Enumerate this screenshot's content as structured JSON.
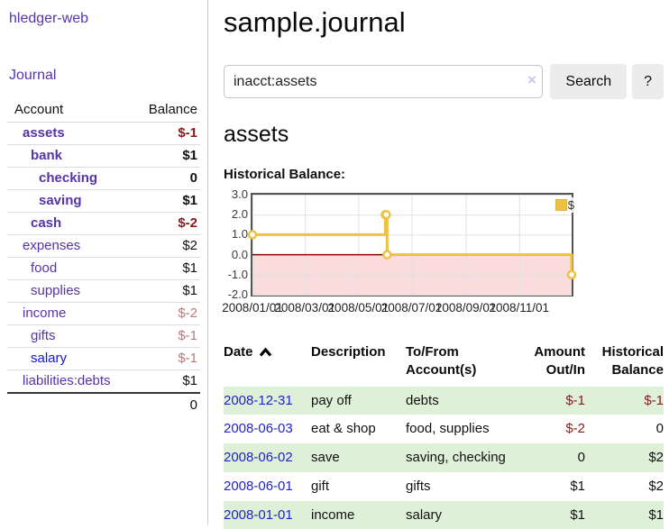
{
  "app": {
    "title": "hledger-web"
  },
  "sidebar": {
    "journal_label": "Journal",
    "accounts_table": {
      "headers": [
        "Account",
        "Balance"
      ],
      "rows": [
        {
          "name": "assets",
          "indent": 1,
          "bold": true,
          "balance": "$-1",
          "balance_style": "negative"
        },
        {
          "name": "bank",
          "indent": 2,
          "bold": true,
          "balance": "$1",
          "balance_style": "normal"
        },
        {
          "name": "checking",
          "indent": 3,
          "bold": true,
          "balance": "0",
          "balance_style": "normal"
        },
        {
          "name": "saving",
          "indent": 3,
          "bold": true,
          "balance": "$1",
          "balance_style": "normal"
        },
        {
          "name": "cash",
          "indent": 2,
          "bold": true,
          "balance": "$-2",
          "balance_style": "negative"
        },
        {
          "name": "expenses",
          "indent": 1,
          "bold": false,
          "balance": "$2",
          "balance_style": "normal"
        },
        {
          "name": "food",
          "indent": 2,
          "bold": false,
          "balance": "$1",
          "balance_style": "normal"
        },
        {
          "name": "supplies",
          "indent": 2,
          "bold": false,
          "balance": "$1",
          "balance_style": "normal"
        },
        {
          "name": "income",
          "indent": 1,
          "bold": false,
          "balance": "$-2",
          "balance_style": "negative-muted"
        },
        {
          "name": "gifts",
          "indent": 2,
          "bold": false,
          "balance": "$-1",
          "balance_style": "negative-muted"
        },
        {
          "name": "salary",
          "indent": 2,
          "bold": false,
          "link_style": "unvisited",
          "balance": "$-1",
          "balance_style": "negative-muted"
        },
        {
          "name": "liabilities:debts",
          "indent": 1,
          "bold": false,
          "balance": "$1",
          "balance_style": "normal"
        }
      ],
      "total": "0"
    }
  },
  "header": {
    "title": "sample.journal"
  },
  "search": {
    "value": "inacct:assets",
    "clear_icon": "×",
    "button_label": "Search",
    "help_label": "?"
  },
  "account_page": {
    "heading": "assets",
    "section_label": "Historical Balance:"
  },
  "chart_data": {
    "type": "line",
    "step": true,
    "title": "Historical Balance",
    "xlim": [
      0,
      365
    ],
    "ylim": [
      -2,
      3
    ],
    "grid": true,
    "legend_position": "top-right",
    "legend": {
      "label": "$"
    },
    "series": [
      {
        "name": "$",
        "color": "#edc240",
        "points": [
          {
            "date": "2008-01-01",
            "x": 0,
            "y": 1
          },
          {
            "date": "2008-06-01",
            "x": 152,
            "y": 2
          },
          {
            "date": "2008-06-02",
            "x": 153,
            "y": 2
          },
          {
            "date": "2008-06-03",
            "x": 154,
            "y": 0
          },
          {
            "date": "2008-12-31",
            "x": 365,
            "y": -1
          }
        ]
      }
    ],
    "y_ticks": [
      {
        "v": 3,
        "label": "3.0"
      },
      {
        "v": 2,
        "label": "2.0"
      },
      {
        "v": 1,
        "label": "1.0"
      },
      {
        "v": 0,
        "label": "0.0"
      },
      {
        "v": -1,
        "label": "-1.0"
      },
      {
        "v": -2,
        "label": "-2.0"
      }
    ],
    "x_ticks": [
      {
        "v": 0,
        "label": "2008/01/01"
      },
      {
        "v": 60,
        "label": "2008/03/01"
      },
      {
        "v": 121,
        "label": "2008/05/01"
      },
      {
        "v": 182,
        "label": "2008/07/01"
      },
      {
        "v": 244,
        "label": "2008/09/01"
      },
      {
        "v": 305,
        "label": "2008/11/01"
      }
    ],
    "negative_region": {
      "from": 0,
      "to": -2,
      "fill": "#fbdcdc",
      "line_color": "#8b0000"
    }
  },
  "transactions": {
    "columns": [
      {
        "label": "Date",
        "sort": "asc",
        "align": "left"
      },
      {
        "label": "Description",
        "align": "left"
      },
      {
        "label": "To/From Account(s)",
        "align": "left"
      },
      {
        "label": "Amount Out/In",
        "align": "right"
      },
      {
        "label": "Historical Balance",
        "align": "right"
      }
    ],
    "rows": [
      {
        "date": "2008-12-31",
        "description": "pay off",
        "accounts": "debts",
        "amount": "$-1",
        "amount_style": "negative",
        "balance": "$-1",
        "balance_style": "negative"
      },
      {
        "date": "2008-06-03",
        "description": "eat & shop",
        "accounts": "food, supplies",
        "amount": "$-2",
        "amount_style": "negative",
        "balance": "0",
        "balance_style": "normal"
      },
      {
        "date": "2008-06-02",
        "description": "save",
        "accounts": "saving, checking",
        "amount": "0",
        "amount_style": "normal",
        "balance": "$2",
        "balance_style": "normal"
      },
      {
        "date": "2008-06-01",
        "description": "gift",
        "accounts": "gifts",
        "amount": "$1",
        "amount_style": "normal",
        "balance": "$2",
        "balance_style": "normal"
      },
      {
        "date": "2008-01-01",
        "description": "income",
        "accounts": "salary",
        "amount": "$1",
        "amount_style": "normal",
        "balance": "$1",
        "balance_style": "normal"
      }
    ]
  },
  "colors": {
    "link_purple": "#5633a8",
    "link_blue": "#1111ee",
    "date_link_blue": "#2222cc",
    "negative_red": "#8b1a1a",
    "negative_muted": "#bd7878",
    "row_stripe_green": "#dff0d8",
    "series_yellow": "#edc240",
    "negative_region_pink": "#fbdcdc",
    "zero_line_red": "#8b0000",
    "button_gray": "#ececec"
  }
}
